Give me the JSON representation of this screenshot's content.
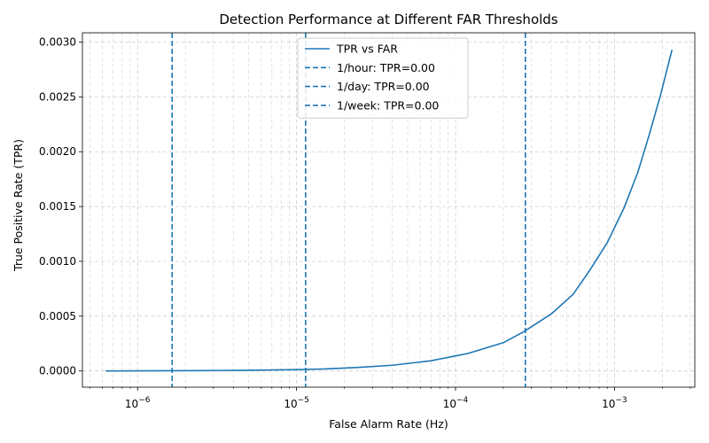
{
  "chart_data": {
    "type": "line",
    "title": "Detection Performance at Different FAR Thresholds",
    "xlabel": "False Alarm Rate (Hz)",
    "ylabel": "True Positive Rate (TPR)",
    "xscale": "log",
    "xlim": [
      4.5e-07,
      0.0032
    ],
    "ylim": [
      -0.000148,
      0.003085
    ],
    "grid": true,
    "legend_placement": "top-center",
    "colors": {
      "series": "#1f77b4",
      "grid": "#b0b0b0",
      "axis": "#000000"
    },
    "x_ticks": [
      {
        "value": 1e-06,
        "base": "10",
        "exp": "−6"
      },
      {
        "value": 1e-05,
        "base": "10",
        "exp": "−5"
      },
      {
        "value": 0.0001,
        "base": "10",
        "exp": "−4"
      },
      {
        "value": 0.001,
        "base": "10",
        "exp": "−3"
      }
    ],
    "y_ticks": [
      {
        "value": 0.0,
        "label": "0.0000"
      },
      {
        "value": 0.0005,
        "label": "0.0005"
      },
      {
        "value": 0.001,
        "label": "0.0010"
      },
      {
        "value": 0.0015,
        "label": "0.0015"
      },
      {
        "value": 0.002,
        "label": "0.0020"
      },
      {
        "value": 0.0025,
        "label": "0.0025"
      },
      {
        "value": 0.003,
        "label": "0.0030"
      }
    ],
    "series": [
      {
        "name": "TPR vs FAR",
        "x": [
          6.3e-07,
          1e-06,
          1.6e-06,
          2.5e-06,
          4e-06,
          6.3e-06,
          1e-05,
          1.5e-05,
          2.5e-05,
          4e-05,
          7e-05,
          0.00012,
          0.0002,
          0.00027,
          0.0004,
          0.00055,
          0.0007,
          0.0009,
          0.00115,
          0.0014,
          0.00165,
          0.00195,
          0.0023
        ],
        "y": [
          0.0,
          1e-06,
          2e-06,
          3e-06,
          5e-06,
          8e-06,
          1.2e-05,
          1.8e-05,
          3.3e-05,
          5.2e-05,
          9.3e-05,
          0.00016,
          0.000258,
          0.00036,
          0.00052,
          0.0007,
          0.00092,
          0.00117,
          0.00149,
          0.00181,
          0.00215,
          0.00252,
          0.00293
        ]
      }
    ],
    "thresholds": [
      {
        "name": "1/hour: TPR=0.00",
        "x": 1.65e-06
      },
      {
        "name": "1/day: TPR=0.00",
        "x": 1.14e-05
      },
      {
        "name": "1/week: TPR=0.00",
        "x": 0.000275
      }
    ]
  }
}
